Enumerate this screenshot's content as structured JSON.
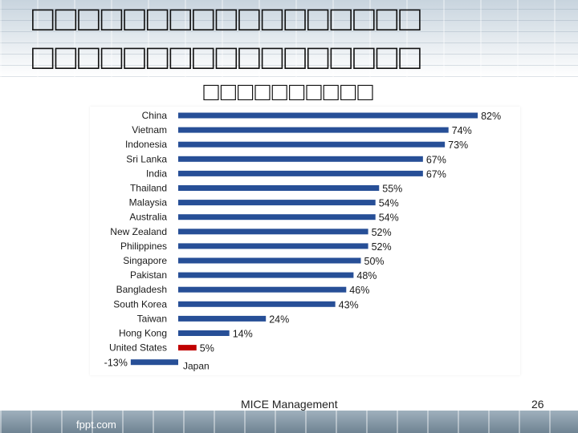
{
  "slide": {
    "title_line1": "□□□□□□□□□□□□□□□□□",
    "title_line2": "□□□□□□□□□□□□□□□□□",
    "title_line3": "□□□□□□□□□□",
    "footer": "MICE Management",
    "page_number": "26",
    "brand": "fppt.com"
  },
  "colors": {
    "bar": "#274f97",
    "highlight": "#c00000",
    "text": "#1a1a1a"
  },
  "chart_data": {
    "type": "bar",
    "orientation": "horizontal",
    "unit": "%",
    "categories": [
      "China",
      "Vietnam",
      "Indonesia",
      "Sri Lanka",
      "India",
      "Thailand",
      "Malaysia",
      "Australia",
      "New Zealand",
      "Philippines",
      "Singapore",
      "Pakistan",
      "Bangladesh",
      "South Korea",
      "Taiwan",
      "Hong Kong",
      "United States",
      "Japan"
    ],
    "values": [
      82,
      74,
      73,
      67,
      67,
      55,
      54,
      54,
      52,
      52,
      50,
      48,
      46,
      43,
      24,
      14,
      5,
      -13
    ],
    "labels": [
      "82%",
      "74%",
      "73%",
      "67%",
      "67%",
      "55%",
      "54%",
      "54%",
      "52%",
      "52%",
      "50%",
      "48%",
      "46%",
      "43%",
      "24%",
      "14%",
      "5%",
      "-13%"
    ],
    "highlight_category": "United States",
    "xlim": [
      -13,
      82
    ],
    "grid": false,
    "legend": "none"
  }
}
